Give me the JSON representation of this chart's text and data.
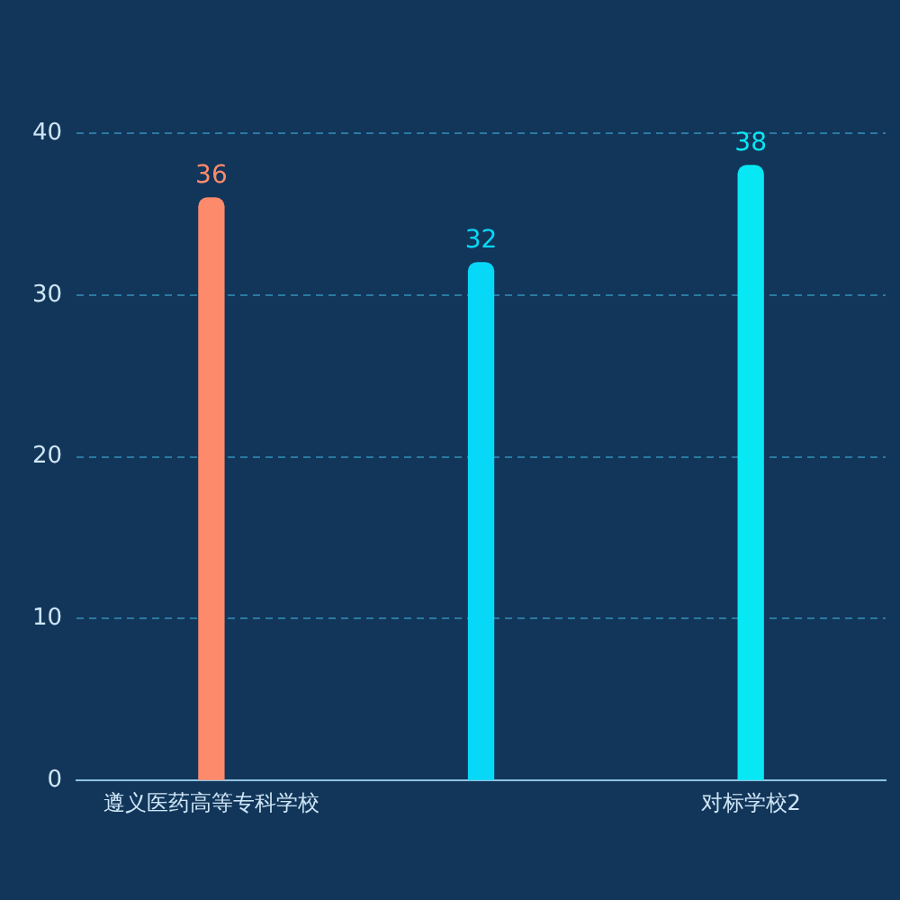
{
  "chart_data": {
    "type": "bar",
    "categories": [
      "遵义医药高等专科学校",
      null,
      "对标学校2"
    ],
    "values": [
      36,
      32,
      38
    ],
    "colors": [
      "#fe8a6c",
      "#08d8f8",
      "#08e8f4"
    ],
    "ylim": [
      0,
      40
    ],
    "yticks": [
      0,
      10,
      20,
      30,
      40
    ],
    "grid": "y",
    "data_labels": true
  }
}
